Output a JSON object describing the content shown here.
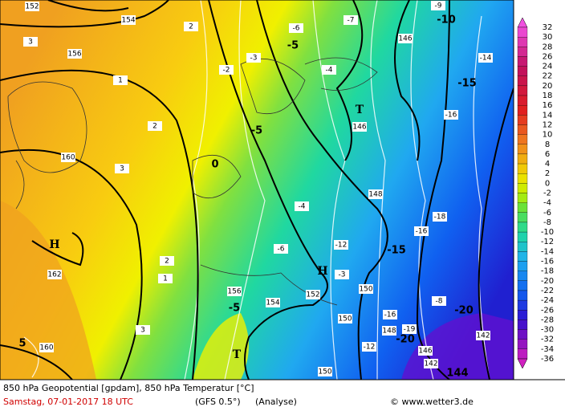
{
  "map": {
    "labels": [
      "152",
      "154",
      "156",
      "160",
      "162",
      "160",
      "146",
      "146",
      "148",
      "150",
      "150",
      "148",
      "146",
      "142",
      "144",
      "142",
      "150",
      "152",
      "154",
      "156",
      "-10",
      "-15",
      "-5",
      "-5",
      "H",
      "H",
      "T",
      "T",
      "-20",
      "-20",
      "-9",
      "-7",
      "-6",
      "-14",
      "-16",
      "-18",
      "-16",
      "-16",
      "-19",
      "-12",
      "-8",
      "2",
      "3",
      "1",
      "2",
      "3",
      "2",
      "1",
      "3",
      "-2",
      "-3",
      "-4",
      "-4",
      "-6",
      "-3",
      "-12",
      "-15",
      "0",
      "-5",
      "5"
    ]
  },
  "color_scale": {
    "labels": [
      32,
      30,
      28,
      26,
      24,
      22,
      20,
      18,
      16,
      14,
      12,
      10,
      8,
      6,
      4,
      2,
      0,
      -2,
      -4,
      -6,
      -8,
      -10,
      -12,
      -14,
      -16,
      -18,
      -20,
      -22,
      -24,
      -26,
      -28,
      -30,
      -32,
      -34,
      -36
    ]
  },
  "footer": {
    "line1": "850 hPa Geopotential [gpdam], 850 hPa Temperatur [°C]",
    "date": "Samstag, 07-01-2017  18 UTC",
    "model": "(GFS 0.5°)",
    "run": "(Analyse)",
    "credit": "© www.wetter3.de"
  }
}
